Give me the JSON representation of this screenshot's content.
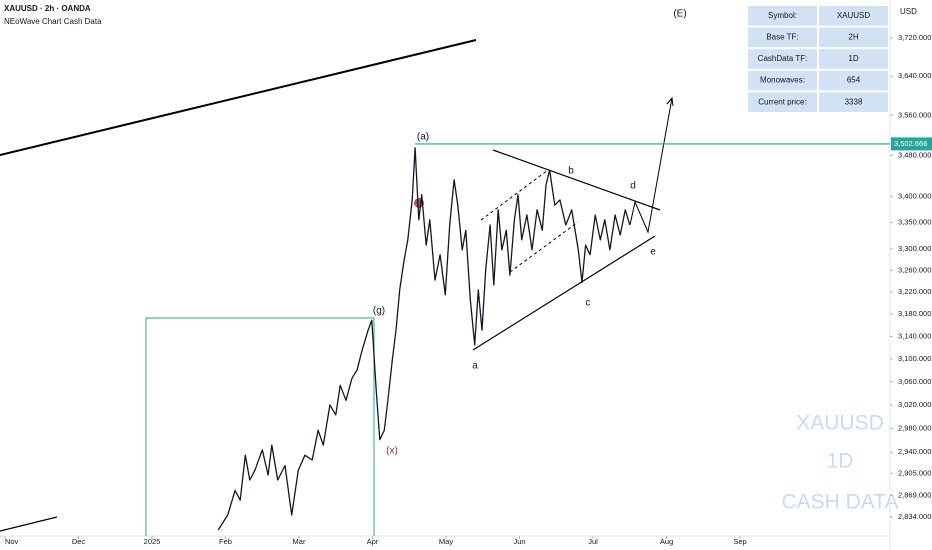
{
  "chart_data": {
    "type": "line",
    "header": [
      "XAUUSD · 2h · OANDA",
      "NEoWave Chart Cash Data"
    ],
    "currency": "USD",
    "log_scale": true,
    "grid": false,
    "series": [
      {
        "name": "XAUUSD",
        "color": "#131722",
        "x": [
          2.9,
          3.03,
          3.13,
          3.2,
          3.27,
          3.33,
          3.4,
          3.5,
          3.58,
          3.63,
          3.71,
          3.81,
          3.9,
          3.99,
          4.08,
          4.18,
          4.26,
          4.33,
          4.42,
          4.5,
          4.56,
          4.64,
          4.72,
          4.79,
          4.86,
          4.94,
          4.99,
          5.05,
          5.1,
          5.16,
          5.21,
          5.27,
          5.32,
          5.37,
          5.43,
          5.48,
          5.54,
          5.58,
          5.63,
          5.67,
          5.73,
          5.78,
          5.85,
          5.92,
          5.99,
          6.05,
          6.11,
          6.16,
          6.22,
          6.27,
          6.33,
          6.39,
          6.44,
          6.49,
          6.54,
          6.6,
          6.65,
          6.71,
          6.76,
          6.82,
          6.87,
          6.93,
          6.98,
          7.03,
          7.1,
          7.17,
          7.24,
          7.31,
          7.36,
          7.41,
          7.48,
          7.55,
          7.63,
          7.71,
          7.8,
          7.85,
          7.9,
          7.96,
          8.03,
          8.1,
          8.16,
          8.23,
          8.3,
          8.37,
          8.44,
          8.5
        ],
        "values": [
          2813,
          2837,
          2877,
          2861,
          2935,
          2894,
          2910,
          2944,
          2902,
          2952,
          2894,
          2918,
          2837,
          2910,
          2935,
          2927,
          2977,
          2952,
          3020,
          3003,
          3054,
          3028,
          3066,
          3081,
          3116,
          3151,
          3169,
          3046,
          2961,
          2977,
          3028,
          3098,
          3151,
          3224,
          3279,
          3317,
          3393,
          3495,
          3355,
          3403,
          3307,
          3355,
          3242,
          3289,
          3215,
          3345,
          3432,
          3383,
          3298,
          3335,
          3206,
          3125,
          3224,
          3151,
          3261,
          3345,
          3233,
          3374,
          3298,
          3335,
          3251,
          3355,
          3403,
          3317,
          3364,
          3298,
          3374,
          3335,
          3422,
          3451,
          3383,
          3393,
          3345,
          3374,
          3298,
          3238,
          3307,
          3289,
          3364,
          3317,
          3355,
          3298,
          3364,
          3326,
          3374,
          3345
        ]
      }
    ],
    "level": {
      "value": 3502.666,
      "label": "3,502.666",
      "color": "#26a69a"
    },
    "xlim": [
      0,
      12
    ],
    "xticks": [
      {
        "value": 0,
        "label": "Nov"
      },
      {
        "value": 1,
        "label": "Dec"
      },
      {
        "value": 2,
        "label": "2025"
      },
      {
        "value": 3,
        "label": "Feb"
      },
      {
        "value": 4,
        "label": "Mar"
      },
      {
        "value": 5,
        "label": "Apr"
      },
      {
        "value": 6,
        "label": "May"
      },
      {
        "value": 7,
        "label": "Jun"
      },
      {
        "value": 8,
        "label": "Jul"
      },
      {
        "value": 9,
        "label": "Aug"
      },
      {
        "value": 10,
        "label": "Sep"
      }
    ],
    "ylim": [
      2805,
      3801
    ],
    "yticks": [
      {
        "value": 3720,
        "label": "3,720.000"
      },
      {
        "value": 3640,
        "label": "3,640.000"
      },
      {
        "value": 3560,
        "label": "3,560.000"
      },
      {
        "value": 3480,
        "label": "3,480.000"
      },
      {
        "value": 3400,
        "label": "3,400.000"
      },
      {
        "value": 3350,
        "label": "3,350.000"
      },
      {
        "value": 3300,
        "label": "3,300.000"
      },
      {
        "value": 3260,
        "label": "3,260.000"
      },
      {
        "value": 3220,
        "label": "3,220.000"
      },
      {
        "value": 3180,
        "label": "3,180.000"
      },
      {
        "value": 3140,
        "label": "3,140.000"
      },
      {
        "value": 3100,
        "label": "3,100.000"
      },
      {
        "value": 3060,
        "label": "3,060.000"
      },
      {
        "value": 3020,
        "label": "3,020.000"
      },
      {
        "value": 2980,
        "label": "2,980.000"
      },
      {
        "value": 2940,
        "label": "2,940.000"
      },
      {
        "value": 2905,
        "label": "2,905.000"
      },
      {
        "value": 2869,
        "label": "2,869.000"
      },
      {
        "value": 2834,
        "label": "2,834.000"
      }
    ],
    "annotations": [
      "(E)",
      "(a)",
      "(g)",
      "(x)",
      "a",
      "b",
      "c",
      "d",
      "e"
    ],
    "watermark": [
      "XAUUSD",
      "1D",
      "CASH DATA"
    ]
  },
  "info_table": {
    "rows": [
      [
        "Symbol:",
        "XAUUSD"
      ],
      [
        "Base TF:",
        "2H"
      ],
      [
        "CashData TF:",
        "1D"
      ],
      [
        "Monowaves:",
        "654"
      ],
      [
        "Current price:",
        "3338"
      ]
    ]
  }
}
